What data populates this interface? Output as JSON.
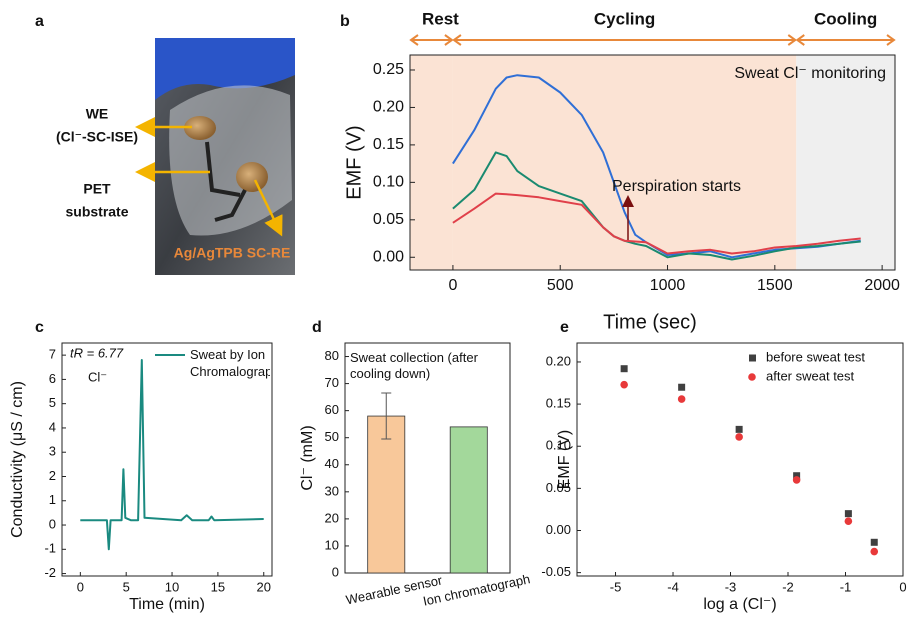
{
  "panel_a": {
    "panel_label": "a",
    "labels": [
      "WE",
      "(Cl⁻-SC-ISE)",
      "PET",
      "substrate",
      "Ag/AgTPB SC-RE"
    ]
  },
  "chart_data": [
    {
      "type": "line",
      "panel_label": "b",
      "xlabel": "Time (sec)",
      "ylabel": "EMF (V)",
      "xlim": [
        -200,
        2060
      ],
      "xticks": [
        0,
        500,
        1000,
        1500,
        2000
      ],
      "ylim": [
        -0.017,
        0.27
      ],
      "yticks": [
        {
          "value": 0,
          "label": "0.00"
        },
        {
          "value": 0.05,
          "label": "0.05"
        },
        {
          "value": 0.1,
          "label": "0.10"
        },
        {
          "value": 0.15,
          "label": "0.15"
        },
        {
          "value": 0.2,
          "label": "0.20"
        },
        {
          "value": 0.25,
          "label": "0.25"
        }
      ],
      "phases": [
        {
          "label": "Rest",
          "xlim": [
            -200,
            0
          ],
          "color": "#fbe3d4"
        },
        {
          "label": "Cycling",
          "xlim": [
            0,
            1600
          ],
          "color": "#fbe3d4"
        },
        {
          "label": "Cooling",
          "xlim": [
            1600,
            2060
          ],
          "color": "#efefef"
        }
      ],
      "phase_arrow_color": "#e8883a",
      "annotations": [
        "Sweat Cl⁻ monitoring",
        "Perspiration starts"
      ],
      "x": [
        0,
        100,
        200,
        250,
        300,
        400,
        500,
        600,
        700,
        750,
        800,
        850,
        900,
        1000,
        1100,
        1200,
        1300,
        1400,
        1500,
        1600,
        1700,
        1800,
        1900
      ],
      "series": [
        {
          "color": "#2f6fd6",
          "values": [
            0.125,
            0.17,
            0.225,
            0.24,
            0.243,
            0.24,
            0.22,
            0.19,
            0.14,
            0.1,
            0.06,
            0.03,
            0.02,
            0.003,
            0.005,
            0.008,
            0.0,
            0.005,
            0.01,
            0.012,
            0.014,
            0.018,
            0.022
          ]
        },
        {
          "color": "#1a8a70",
          "values": [
            0.065,
            0.09,
            0.14,
            0.135,
            0.115,
            0.095,
            0.085,
            0.075,
            0.04,
            0.028,
            0.022,
            0.018,
            0.015,
            0.0,
            0.005,
            0.003,
            -0.003,
            0.002,
            0.008,
            0.013,
            0.015,
            0.018,
            0.021
          ]
        },
        {
          "color": "#e0404a",
          "values": [
            0.046,
            0.065,
            0.085,
            0.084,
            0.083,
            0.08,
            0.075,
            0.07,
            0.04,
            0.028,
            0.022,
            0.021,
            0.02,
            0.005,
            0.008,
            0.01,
            0.005,
            0.008,
            0.013,
            0.015,
            0.018,
            0.022,
            0.025
          ]
        }
      ]
    },
    {
      "type": "line",
      "panel_label": "c",
      "xlabel": "Time (min)",
      "ylabel": "Conductivity (μS / cm)",
      "xlim": [
        -2,
        20.9
      ],
      "xticks": [
        0,
        5,
        10,
        15,
        20
      ],
      "ylim": [
        -2.1,
        7.5
      ],
      "yticks": [
        -2,
        -1,
        0,
        1,
        2,
        3,
        4,
        5,
        6,
        7
      ],
      "annotations": [
        "tR = 6.77",
        "Cl⁻"
      ],
      "legend": "upper right",
      "x": [
        0,
        2.9,
        3.1,
        3.3,
        4.5,
        4.7,
        4.9,
        5.5,
        6.3,
        6.7,
        7.0,
        11,
        11.6,
        12.2,
        14,
        14.3,
        14.6,
        20
      ],
      "series": [
        {
          "name": "Sweat by Ion Chromalography",
          "color": "#1a8a80",
          "values": [
            0.2,
            0.2,
            -1.0,
            0.2,
            0.2,
            2.3,
            0.3,
            0.2,
            0.2,
            6.8,
            0.3,
            0.2,
            0.4,
            0.2,
            0.2,
            0.35,
            0.2,
            0.25
          ]
        }
      ]
    },
    {
      "type": "bar",
      "panel_label": "d",
      "ylabel": "Cl⁻ (mM)",
      "categories": [
        "Wearable sensor",
        "Ion chromatograph"
      ],
      "values": [
        58,
        54
      ],
      "errors": [
        8.5,
        null
      ],
      "colors": [
        "#f8c89a",
        "#a3d89b"
      ],
      "ylim": [
        0,
        85
      ],
      "yticks": [
        0,
        10,
        20,
        30,
        40,
        50,
        60,
        70,
        80
      ],
      "annotations": [
        "Sweat collection (after cooling down)"
      ]
    },
    {
      "type": "scatter",
      "panel_label": "e",
      "xlabel": "log a (Cl⁻)",
      "ylabel": "EMF (V)",
      "xlim": [
        -5.67,
        0
      ],
      "xticks": [
        -5,
        -4,
        -3,
        -2,
        -1,
        0
      ],
      "ylim": [
        -0.054,
        0.2225
      ],
      "yticks": [
        {
          "value": -0.05,
          "label": "-0.05"
        },
        {
          "value": 0,
          "label": "0.00"
        },
        {
          "value": 0.05,
          "label": "0.05"
        },
        {
          "value": 0.1,
          "label": "0.10"
        },
        {
          "value": 0.15,
          "label": "0.15"
        },
        {
          "value": 0.2,
          "label": "0.20"
        }
      ],
      "legend": "upper right",
      "series": [
        {
          "name": "before sweat test",
          "color": "#404040",
          "marker": "square",
          "x": [
            -4.85,
            -3.85,
            -2.85,
            -1.85,
            -0.95,
            -0.5
          ],
          "values": [
            0.192,
            0.17,
            0.12,
            0.065,
            0.02,
            -0.014
          ]
        },
        {
          "name": "after sweat test",
          "color": "#e8393a",
          "marker": "circle",
          "x": [
            -4.85,
            -3.85,
            -2.85,
            -1.85,
            -0.95,
            -0.5
          ],
          "values": [
            0.173,
            0.156,
            0.111,
            0.06,
            0.011,
            -0.025
          ]
        }
      ]
    }
  ]
}
